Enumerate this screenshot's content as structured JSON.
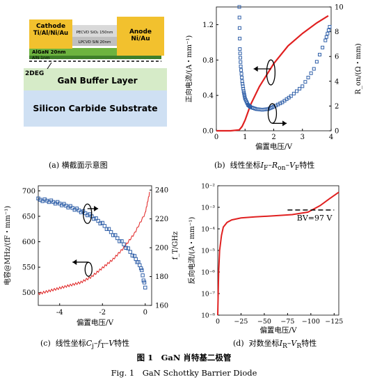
{
  "figure": {
    "title_cn": "图 1　GaN 肖特基二极管",
    "title_en": "Fig. 1　GaN Schottky Barrier Diode"
  },
  "panel_a": {
    "caption": "(a)  横截面示意图",
    "labels": {
      "cathode": "Cathode",
      "cathode_metal": "Ti/Al/Ni/Au",
      "anode": "Anode",
      "anode_metal": "Ni/Au",
      "pecvd": "PECVD SiO₂ 150nm",
      "lpcvd": "LPCVD SiN 20nm",
      "algan": "AlGaN 20nm",
      "aln": "AlN 1nm",
      "twodeg": "2DEG",
      "buffer": "GaN Buffer Layer",
      "substrate": "Silicon Carbide Substrate"
    },
    "colors": {
      "cathode": "#f2c12e",
      "anode": "#f2c12e",
      "pecvd": "#d9d9d9",
      "lpcvd": "#bfbfbf",
      "algan": "#6db33f",
      "aln": "#3f7f2a",
      "buffer": "#d6ebc8",
      "substrate": "#cfe0f3"
    }
  },
  "panel_b": {
    "caption": "(b)  线性坐标I_F–R_on–V_F特性",
    "chart_data": {
      "type": "line",
      "xlabel": "偏置电压/V",
      "ylabel_left": "正向电流/(A・mm⁻¹)",
      "ylabel_right": "R_on/(Ω・mm)",
      "xlim": [
        0,
        4
      ],
      "ylim_left": [
        0,
        1.4
      ],
      "ylim_right": [
        0,
        10
      ],
      "x_ticks": [
        "0",
        "1",
        "2",
        "3",
        "4"
      ],
      "y_left_ticks": [
        "0.0",
        "0.4",
        "0.8",
        "1.2"
      ],
      "y_right_ticks": [
        "0",
        "2",
        "4",
        "6",
        "8",
        "10"
      ],
      "series": [
        {
          "axis": "left",
          "color": "#e02020",
          "x": [
            0,
            0.5,
            0.8,
            0.9,
            1.0,
            1.2,
            1.5,
            2.0,
            2.5,
            3.0,
            3.5,
            3.9
          ],
          "y": [
            0,
            0,
            0.01,
            0.05,
            0.12,
            0.3,
            0.5,
            0.76,
            0.96,
            1.1,
            1.22,
            1.3
          ]
        },
        {
          "axis": "right",
          "color": "#2f5fa8",
          "x": [
            0.8,
            0.82,
            0.85,
            0.9,
            0.95,
            1.0,
            1.1,
            1.2,
            1.4,
            1.6,
            1.8,
            2.0,
            2.3,
            2.6,
            3.0,
            3.4,
            3.8,
            3.95
          ],
          "y": [
            10,
            6.6,
            5.2,
            4.0,
            3.2,
            2.6,
            2.1,
            1.9,
            1.75,
            1.7,
            1.75,
            1.95,
            2.3,
            2.8,
            3.6,
            5.0,
            7.3,
            8.4
          ]
        }
      ]
    }
  },
  "panel_c": {
    "caption": "(c)  线性坐标C_j–f_T–V特性",
    "chart_data": {
      "type": "line",
      "xlabel": "偏置电压/V",
      "ylabel_left": "电容@MHz/(fF・mm⁻¹)",
      "ylabel_right": "f_T/GHz",
      "xlim": [
        -5,
        0.3
      ],
      "ylim_left": [
        475,
        710
      ],
      "ylim_right": [
        160,
        243
      ],
      "x_ticks": [
        "-4",
        "-2",
        "0"
      ],
      "y_left_ticks": [
        "500",
        "550",
        "600",
        "650",
        "700"
      ],
      "y_right_ticks": [
        "160",
        "180",
        "200",
        "220",
        "240"
      ],
      "series": [
        {
          "axis": "left",
          "color": "#2f5fa8",
          "x": [
            -5,
            -4.5,
            -4,
            -3.5,
            -3,
            -2.5,
            -2,
            -1.5,
            -1,
            -0.5,
            -0.2,
            0
          ],
          "y": [
            683,
            680,
            675,
            668,
            660,
            650,
            635,
            615,
            595,
            570,
            550,
            510
          ]
        },
        {
          "axis": "right",
          "color": "#e02020",
          "x": [
            -5,
            -4.5,
            -4,
            -3.5,
            -3,
            -2.5,
            -2,
            -1.5,
            -1,
            -0.5,
            0,
            0.2
          ],
          "y": [
            168,
            170,
            172,
            174,
            176,
            180,
            186,
            192,
            200,
            210,
            224,
            238
          ]
        }
      ]
    }
  },
  "panel_d": {
    "caption": "(d)  对数坐标I_R–V_R特性",
    "annotation": "BV=97 V",
    "chart_data": {
      "type": "line",
      "xlabel": "偏置电压/V",
      "ylabel": "反向电流/(A・mm⁻¹)",
      "xlim": [
        0,
        -130
      ],
      "ylim_log": [
        -8,
        -2
      ],
      "x_ticks": [
        "0",
        "−25",
        "−50",
        "−75",
        "−100",
        "−125"
      ],
      "y_ticks": [
        "10⁻²",
        "10⁻³",
        "10⁻⁴",
        "10⁻⁵",
        "10⁻⁶",
        "10⁻⁷",
        "10⁻⁸"
      ],
      "series": [
        {
          "color": "#e02020",
          "x": [
            0,
            -1,
            -2,
            -4,
            -6,
            -10,
            -15,
            -25,
            -40,
            -60,
            -80,
            -97,
            -110,
            -120,
            -130
          ],
          "y": [
            1e-08,
            1e-06,
            1e-05,
            5e-05,
            0.00012,
            0.0002,
            0.00026,
            0.00032,
            0.00036,
            0.0004,
            0.00046,
            0.0006,
            0.0012,
            0.0025,
            0.005
          ]
        }
      ]
    }
  }
}
